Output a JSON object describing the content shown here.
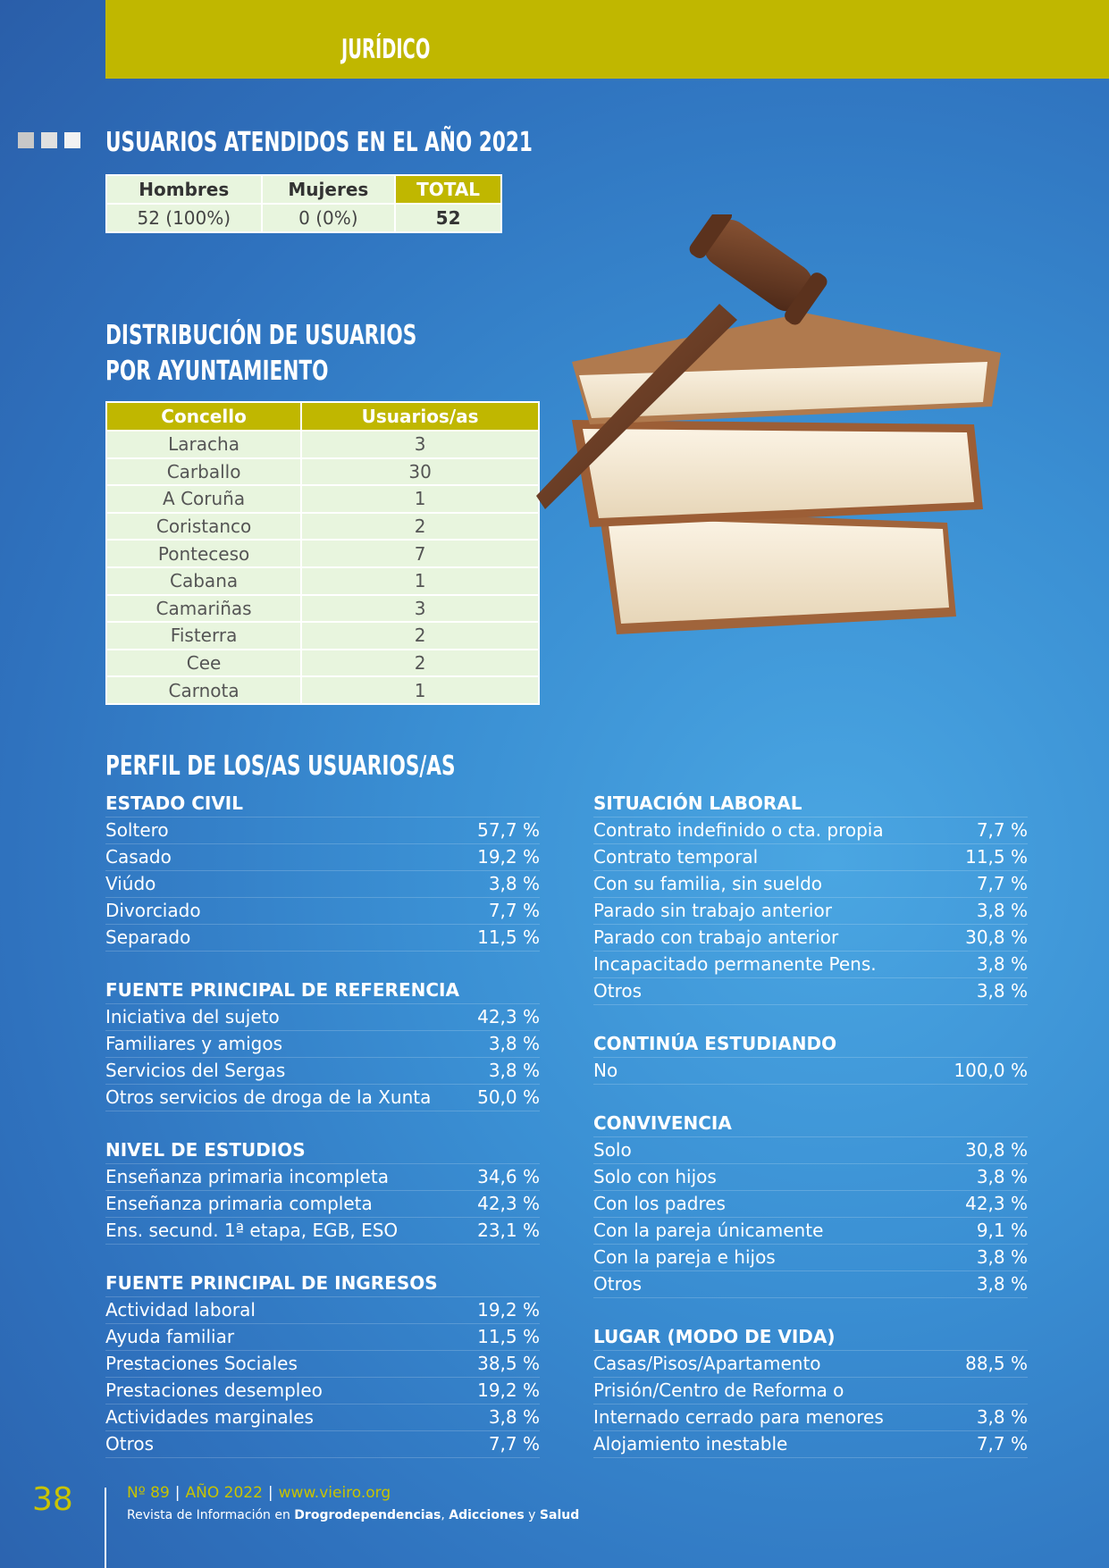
{
  "header": {
    "section": "JURÍDICO",
    "band_color": "#c0b700"
  },
  "squares": {
    "colors": [
      "#c8c8c8",
      "#e0e0e0",
      "#f2f2f2"
    ]
  },
  "summary": {
    "title": "USUARIOS ATENDIDOS EN EL AÑO 2021",
    "headers": [
      "Hombres",
      "Mujeres",
      "TOTAL"
    ],
    "values": [
      "52 (100%)",
      "0 (0%)",
      "52"
    ]
  },
  "distribution": {
    "title_line1": "DISTRIBUCIÓN DE USUARIOS",
    "title_line2": "POR AYUNTAMIENTO",
    "headers": [
      "Concello",
      "Usuarios/as"
    ],
    "rows": [
      [
        "Laracha",
        "3"
      ],
      [
        "Carballo",
        "30"
      ],
      [
        "A Coruña",
        "1"
      ],
      [
        "Coristanco",
        "2"
      ],
      [
        "Ponteceso",
        "7"
      ],
      [
        "Cabana",
        "1"
      ],
      [
        "Camariñas",
        "3"
      ],
      [
        "Fisterra",
        "2"
      ],
      [
        "Cee",
        "2"
      ],
      [
        "Carnota",
        "1"
      ]
    ]
  },
  "profile": {
    "title": "PERFIL DE LOS/AS USUARIOS/AS",
    "left": [
      {
        "title": "ESTADO CIVIL",
        "rows": [
          [
            "Soltero",
            "57,7 %"
          ],
          [
            "Casado",
            "19,2 %"
          ],
          [
            "Viúdo",
            "3,8 %"
          ],
          [
            "Divorciado",
            "7,7 %"
          ],
          [
            "Separado",
            "11,5 %"
          ]
        ]
      },
      {
        "title": "FUENTE PRINCIPAL DE REFERENCIA",
        "rows": [
          [
            "Iniciativa del sujeto",
            "42,3 %"
          ],
          [
            "Familiares y amigos",
            "3,8 %"
          ],
          [
            "Servicios del Sergas",
            "3,8 %"
          ],
          [
            "Otros servicios de droga de la Xunta",
            "50,0 %"
          ]
        ]
      },
      {
        "title": "NIVEL DE ESTUDIOS",
        "rows": [
          [
            "Enseñanza primaria incompleta",
            "34,6 %"
          ],
          [
            "Enseñanza primaria completa",
            "42,3 %"
          ],
          [
            "Ens. secund. 1ª etapa, EGB, ESO",
            "23,1 %"
          ]
        ]
      },
      {
        "title": "FUENTE PRINCIPAL DE INGRESOS",
        "rows": [
          [
            "Actividad laboral",
            "19,2 %"
          ],
          [
            "Ayuda familiar",
            "11,5 %"
          ],
          [
            "Prestaciones Sociales",
            "38,5 %"
          ],
          [
            "Prestaciones desempleo",
            "19,2 %"
          ],
          [
            "Actividades marginales",
            "3,8 %"
          ],
          [
            "Otros",
            "7,7 %"
          ]
        ]
      }
    ],
    "right": [
      {
        "title": "SITUACIÓN LABORAL",
        "rows": [
          [
            "Contrato indefinido o cta. propia",
            "7,7 %"
          ],
          [
            "Contrato temporal",
            "11,5 %"
          ],
          [
            "Con su familia, sin sueldo",
            "7,7 %"
          ],
          [
            "Parado sin trabajo anterior",
            "3,8 %"
          ],
          [
            "Parado con trabajo anterior",
            "30,8 %"
          ],
          [
            "Incapacitado permanente Pens.",
            "3,8 %"
          ],
          [
            "Otros",
            "3,8 %"
          ]
        ]
      },
      {
        "title": "CONTINÚA ESTUDIANDO",
        "rows": [
          [
            "No",
            "100,0 %"
          ]
        ]
      },
      {
        "title": "CONVIVENCIA",
        "rows": [
          [
            "Solo",
            "30,8 %"
          ],
          [
            "Solo con hijos",
            "3,8 %"
          ],
          [
            "Con los padres",
            "42,3 %"
          ],
          [
            "Con la pareja únicamente",
            "9,1 %"
          ],
          [
            "Con la pareja e hijos",
            "3,8 %"
          ],
          [
            "Otros",
            "3,8 %"
          ]
        ]
      },
      {
        "title": "LUGAR (MODO DE VIDA)",
        "rows": [
          [
            "Casas/Pisos/Apartamento",
            "88,5 %"
          ],
          [
            "Prisión/Centro de Reforma o",
            ""
          ],
          [
            "Internado cerrado para menores",
            "3,8 %"
          ],
          [
            "Alojamiento inestable",
            "7,7 %"
          ]
        ]
      }
    ]
  },
  "footer": {
    "page_number": "38",
    "issue": "Nº 89",
    "year": "AÑO 2022",
    "website": "www.vieiro.org",
    "tagline_start": "Revista de Información en ",
    "tagline_b1": "Drogrodependencias",
    "tagline_mid": ", ",
    "tagline_b2": "Adicciones",
    "tagline_y": " y ",
    "tagline_b3": "Salud"
  }
}
